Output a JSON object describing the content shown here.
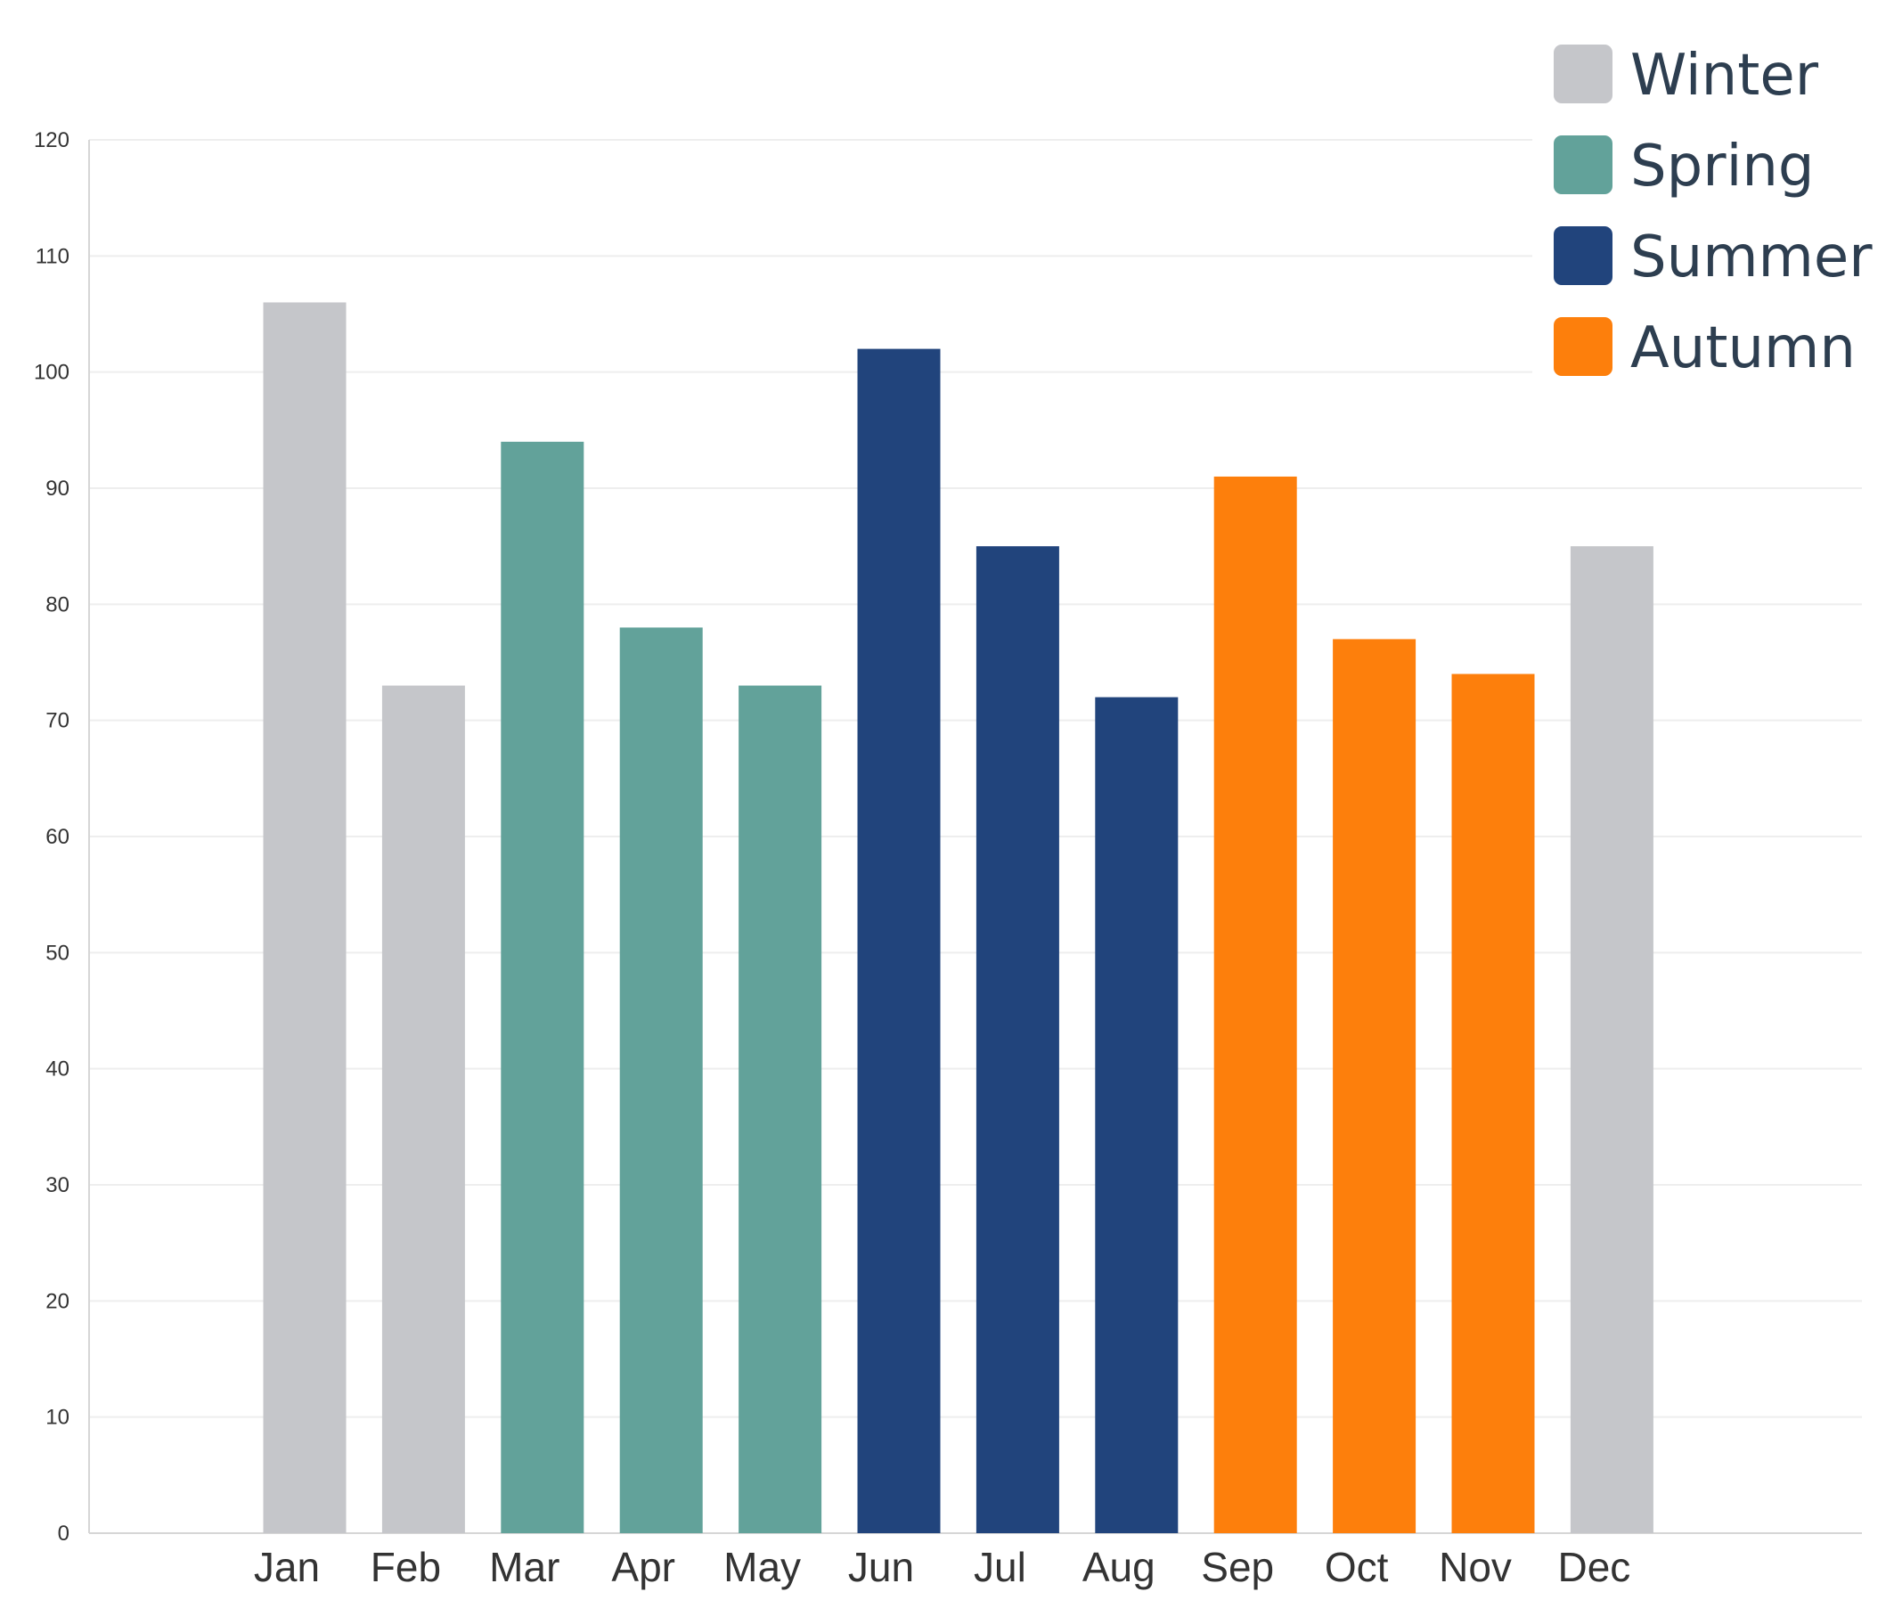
{
  "chart_data": {
    "type": "bar",
    "title": "",
    "xlabel": "",
    "ylabel": "",
    "ylim": [
      0,
      120
    ],
    "yticks": [
      0,
      10,
      20,
      30,
      40,
      50,
      60,
      70,
      80,
      90,
      100,
      110,
      120
    ],
    "categories": [
      "Jan",
      "Feb",
      "Mar",
      "Apr",
      "May",
      "Jun",
      "Jul",
      "Aug",
      "Sep",
      "Oct",
      "Nov",
      "Dec"
    ],
    "values": [
      106,
      73,
      94,
      78,
      73,
      102,
      85,
      72,
      91,
      77,
      74,
      85
    ],
    "groups": [
      "Winter",
      "Winter",
      "Spring",
      "Spring",
      "Spring",
      "Summer",
      "Summer",
      "Summer",
      "Autumn",
      "Autumn",
      "Autumn",
      "Winter"
    ],
    "legend": [
      {
        "name": "Winter",
        "color": "#c5c6ca"
      },
      {
        "name": "Spring",
        "color": "#62a29a"
      },
      {
        "name": "Summer",
        "color": "#21447c"
      },
      {
        "name": "Autumn",
        "color": "#fd7f0c"
      }
    ],
    "legend_position": "top-right",
    "grid": true
  }
}
